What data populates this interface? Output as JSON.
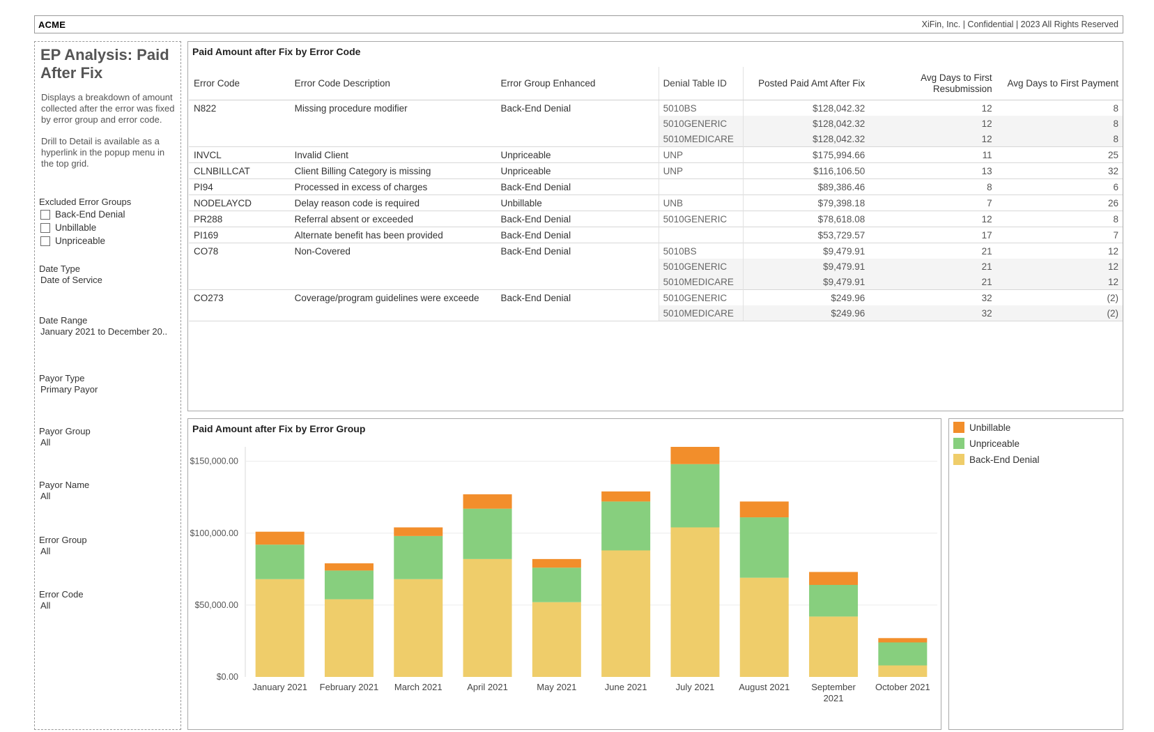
{
  "header": {
    "brand": "ACME",
    "confidential": "XiFin, Inc. | Confidential | 2023 All Rights Reserved"
  },
  "sidebar": {
    "title": "EP Analysis: Paid After Fix",
    "desc1": "Displays a breakdown of amount collected after the error was fixed by error group and error code.",
    "desc2": "Drill to Detail is available as a hyperlink in the popup menu in the top grid.",
    "excluded_label": "Excluded Error Groups",
    "excluded_options": [
      "Back-End Denial",
      "Unbillable",
      "Unpriceable"
    ],
    "filters": {
      "date_type": {
        "label": "Date Type",
        "value": "Date of Service"
      },
      "date_range": {
        "label": "Date Range",
        "value": "January 2021 to December 20.."
      },
      "payor_type": {
        "label": "Payor Type",
        "value": "Primary Payor"
      },
      "payor_group": {
        "label": "Payor Group",
        "value": "All"
      },
      "payor_name": {
        "label": "Payor Name",
        "value": "All"
      },
      "error_group": {
        "label": "Error Group",
        "value": "All"
      },
      "error_code": {
        "label": "Error Code",
        "value": "All"
      }
    }
  },
  "table_panel": {
    "title": "Paid Amount after Fix by Error Code",
    "columns": [
      "Error Code",
      "Error Code Description",
      "Error Group Enhanced",
      "Denial Table ID",
      "Posted Paid Amt After Fix",
      "Avg Days to First Resubmission",
      "Avg Days to First Payment"
    ],
    "rows": [
      {
        "code": "N822",
        "desc": "Missing procedure modifier",
        "group": "Back-End Denial",
        "denial": "5010BS",
        "amt": "$128,042.32",
        "resub": "12",
        "pay": "8"
      },
      {
        "code": "",
        "desc": "",
        "group": "",
        "denial": "5010GENERIC",
        "amt": "$128,042.32",
        "resub": "12",
        "pay": "8"
      },
      {
        "code": "",
        "desc": "",
        "group": "",
        "denial": "5010MEDICARE",
        "amt": "$128,042.32",
        "resub": "12",
        "pay": "8"
      },
      {
        "code": "INVCL",
        "desc": "Invalid Client",
        "group": "Unpriceable",
        "denial": "UNP",
        "amt": "$175,994.66",
        "resub": "11",
        "pay": "25"
      },
      {
        "code": "CLNBILLCAT",
        "desc": "Client Billing Category is missing",
        "group": "Unpriceable",
        "denial": "UNP",
        "amt": "$116,106.50",
        "resub": "13",
        "pay": "32"
      },
      {
        "code": "PI94",
        "desc": "Processed in excess of charges",
        "group": "Back-End Denial",
        "denial": "",
        "amt": "$89,386.46",
        "resub": "8",
        "pay": "6"
      },
      {
        "code": "NODELAYCD",
        "desc": "Delay reason code is required",
        "group": "Unbillable",
        "denial": "UNB",
        "amt": "$79,398.18",
        "resub": "7",
        "pay": "26"
      },
      {
        "code": "PR288",
        "desc": "Referral absent or exceeded",
        "group": "Back-End Denial",
        "denial": "5010GENERIC",
        "amt": "$78,618.08",
        "resub": "12",
        "pay": "8"
      },
      {
        "code": "PI169",
        "desc": "Alternate benefit has been provided",
        "group": "Back-End Denial",
        "denial": "",
        "amt": "$53,729.57",
        "resub": "17",
        "pay": "7"
      },
      {
        "code": "CO78",
        "desc": "Non-Covered",
        "group": "Back-End Denial",
        "denial": "5010BS",
        "amt": "$9,479.91",
        "resub": "21",
        "pay": "12"
      },
      {
        "code": "",
        "desc": "",
        "group": "",
        "denial": "5010GENERIC",
        "amt": "$9,479.91",
        "resub": "21",
        "pay": "12"
      },
      {
        "code": "",
        "desc": "",
        "group": "",
        "denial": "5010MEDICARE",
        "amt": "$9,479.91",
        "resub": "21",
        "pay": "12"
      },
      {
        "code": "CO273",
        "desc": "Coverage/program guidelines were exceede",
        "group": "Back-End Denial",
        "denial": "5010GENERIC",
        "amt": "$249.96",
        "resub": "32",
        "pay": "(2)"
      },
      {
        "code": "",
        "desc": "",
        "group": "",
        "denial": "5010MEDICARE",
        "amt": "$249.96",
        "resub": "32",
        "pay": "(2)"
      }
    ]
  },
  "chart_data": {
    "type": "bar",
    "stacked": true,
    "title": "Paid Amount after Fix by Error Group",
    "categories": [
      "January 2021",
      "February 2021",
      "March 2021",
      "April 2021",
      "May 2021",
      "June 2021",
      "July 2021",
      "August 2021",
      "September 2021",
      "October 2021"
    ],
    "series": [
      {
        "name": "Back-End Denial",
        "color": "#efcd6a",
        "values": [
          68000,
          54000,
          68000,
          82000,
          52000,
          88000,
          104000,
          69000,
          42000,
          8000
        ]
      },
      {
        "name": "Unpriceable",
        "color": "#87cf7e",
        "values": [
          24000,
          20000,
          30000,
          35000,
          24000,
          34000,
          44000,
          42000,
          22000,
          16000
        ]
      },
      {
        "name": "Unbillable",
        "color": "#f28e2b",
        "values": [
          9000,
          5000,
          6000,
          10000,
          6000,
          7000,
          12000,
          11000,
          9000,
          3000
        ]
      }
    ],
    "yticks": [
      "$0.00",
      "$50,000.00",
      "$100,000.00",
      "$150,000.00"
    ],
    "ylim": [
      0,
      160000
    ],
    "grid": true,
    "legend_position": "right"
  },
  "legend": {
    "items": [
      {
        "label": "Unbillable",
        "color": "#f28e2b"
      },
      {
        "label": "Unpriceable",
        "color": "#87cf7e"
      },
      {
        "label": "Back-End Denial",
        "color": "#efcd6a"
      }
    ]
  }
}
